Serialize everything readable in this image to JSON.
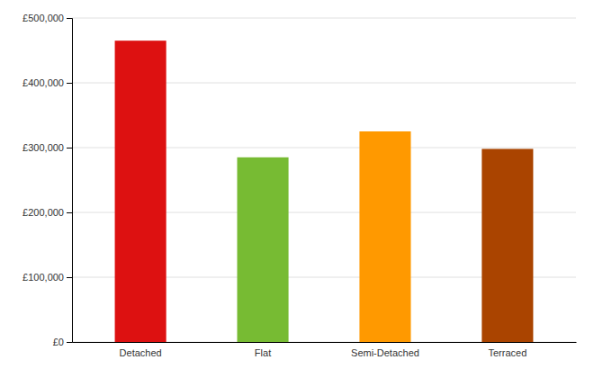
{
  "chart_data": {
    "type": "bar",
    "categories": [
      "Detached",
      "Flat",
      "Semi-Detached",
      "Terraced"
    ],
    "values": [
      465000,
      285000,
      325000,
      298000
    ],
    "colors": [
      "#dd1111",
      "#77bb33",
      "#ff9900",
      "#aa4400"
    ],
    "ylim": [
      0,
      500000
    ],
    "yticks": [
      {
        "value": 0,
        "label": "£0"
      },
      {
        "value": 100000,
        "label": "£100,000"
      },
      {
        "value": 200000,
        "label": "£200,000"
      },
      {
        "value": 300000,
        "label": "£300,000"
      },
      {
        "value": 400000,
        "label": "£400,000"
      },
      {
        "value": 500000,
        "label": "£500,000"
      }
    ],
    "grid": true
  }
}
